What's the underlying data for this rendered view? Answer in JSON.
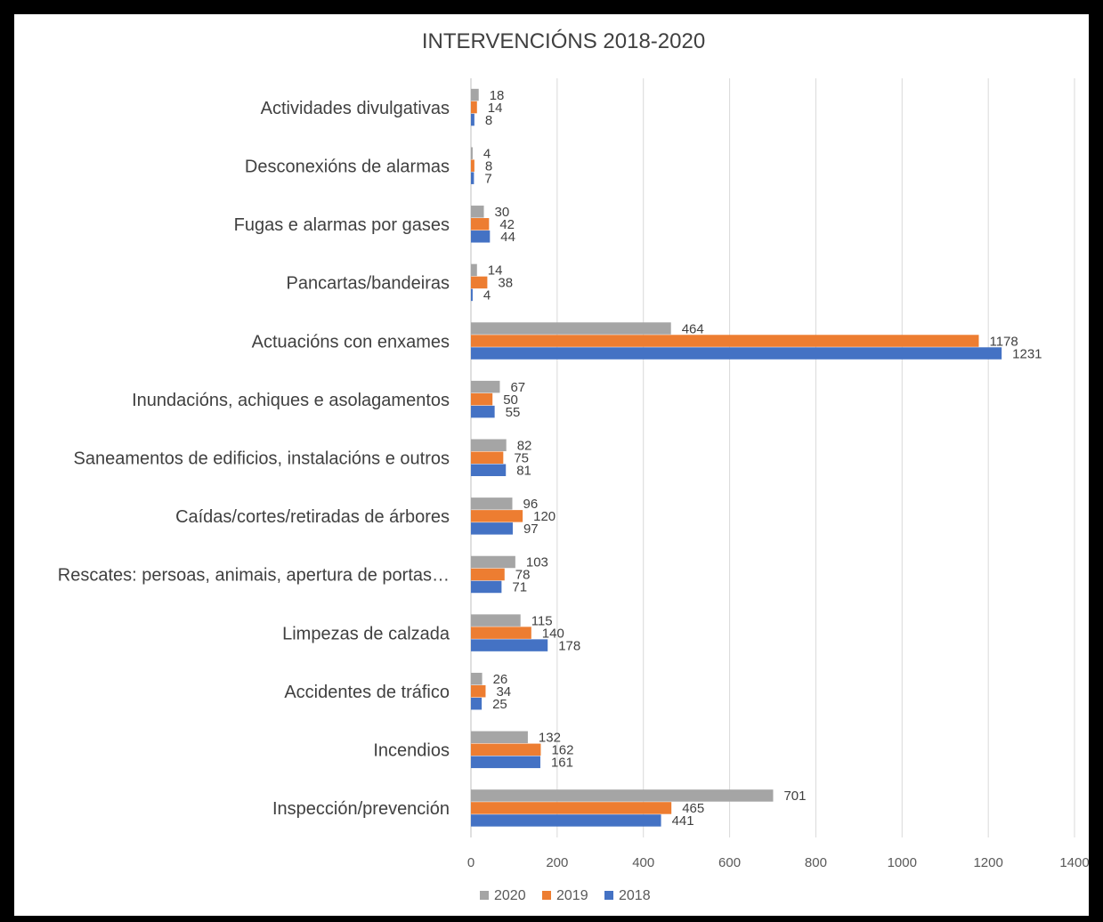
{
  "chart_data": {
    "type": "bar",
    "orientation": "horizontal",
    "title": "INTERVENCIÓNS 2018-2020",
    "categories": [
      "Actividades divulgativas",
      "Desconexións de alarmas",
      "Fugas e alarmas por gases",
      "Pancartas/bandeiras",
      "Actuacións con enxames",
      "Inundacións, achiques e asolagamentos",
      "Saneamentos de edificios, instalacións e outros",
      "Caídas/cortes/retiradas de árbores",
      "Rescates: persoas, animais, apertura de portas…",
      "Limpezas de calzada",
      "Accidentes de tráfico",
      "Incendios",
      "Inspección/prevención"
    ],
    "series": [
      {
        "name": "2020",
        "color": "#a5a5a5",
        "values": [
          18,
          4,
          30,
          14,
          464,
          67,
          82,
          96,
          103,
          115,
          26,
          132,
          701
        ]
      },
      {
        "name": "2019",
        "color": "#ed7d31",
        "values": [
          14,
          8,
          42,
          38,
          1178,
          50,
          75,
          120,
          78,
          140,
          34,
          162,
          465
        ]
      },
      {
        "name": "2018",
        "color": "#4472c4",
        "values": [
          8,
          7,
          44,
          4,
          1231,
          55,
          81,
          97,
          71,
          178,
          25,
          161,
          441
        ]
      }
    ],
    "xlim": [
      0,
      1400
    ],
    "xticks": [
      0,
      200,
      400,
      600,
      800,
      1000,
      1200,
      1400
    ],
    "grid": "vertical",
    "legend_position": "bottom",
    "legend_order": [
      "2020",
      "2019",
      "2018"
    ]
  }
}
